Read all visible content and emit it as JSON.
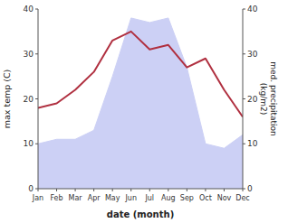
{
  "chart_data": {
    "type": "line",
    "categories": [
      "Jan",
      "Feb",
      "Mar",
      "Apr",
      "May",
      "Jun",
      "Jul",
      "Aug",
      "Sep",
      "Oct",
      "Nov",
      "Dec"
    ],
    "series": [
      {
        "type": "area",
        "color": "#ccd0f5",
        "axis": "y2",
        "values": [
          10,
          11,
          11,
          13,
          25,
          38,
          37,
          38,
          27,
          10,
          9,
          12
        ]
      },
      {
        "type": "line",
        "color": "#b03040",
        "values": [
          18,
          19,
          22,
          26,
          33,
          35,
          31,
          32,
          27,
          29,
          22,
          16
        ]
      }
    ],
    "x_label": "date (month)",
    "y_label": "max temp (C)",
    "y2_label": "med. precipitation\n(kg/m2)",
    "ylim": [
      0,
      40
    ],
    "yticks": [
      0,
      10,
      20,
      30,
      40
    ],
    "y2lim": [
      0,
      40
    ],
    "y2ticks": [
      0,
      10,
      20,
      30,
      40
    ],
    "grid": false
  }
}
